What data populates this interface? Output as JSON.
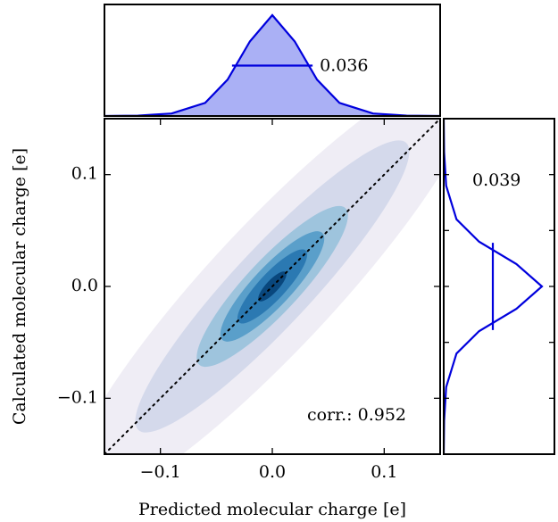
{
  "chart_data": [
    {
      "type": "contour",
      "panel": "main",
      "xlabel": "Predicted molecular charge [e]",
      "ylabel": "Calculated molecular charge [e]",
      "xlim": [
        -0.15,
        0.15
      ],
      "ylim": [
        -0.15,
        0.15
      ],
      "xticks": [
        -0.1,
        0.0,
        0.1
      ],
      "yticks": [
        -0.1,
        0.0,
        0.1
      ],
      "xtick_labels": [
        "−0.1",
        "0.0",
        "0.1"
      ],
      "ytick_labels": [
        "−0.1",
        "0.0",
        "0.1"
      ],
      "diagonal": {
        "style": "dotted",
        "x": [
          -0.15,
          0.15
        ],
        "y": [
          -0.15,
          0.15
        ]
      },
      "density_center": [
        0.0,
        0.0
      ],
      "density_levels": [
        0.05,
        0.2,
        0.4,
        0.6,
        0.8
      ],
      "annotation": "corr.: 0.952",
      "correlation": 0.952,
      "grid": false
    },
    {
      "type": "area",
      "panel": "top-marginal",
      "distribution": "x",
      "x": [
        -0.15,
        -0.12,
        -0.09,
        -0.06,
        -0.04,
        -0.02,
        0.0,
        0.02,
        0.04,
        0.06,
        0.09,
        0.12,
        0.15
      ],
      "y": [
        0.0,
        0.004,
        0.025,
        0.13,
        0.36,
        0.74,
        1.0,
        0.74,
        0.36,
        0.13,
        0.025,
        0.004,
        0.0
      ],
      "fwhm_line": [
        -0.036,
        0.036
      ],
      "annotation": "0.036",
      "color": "#0000dd",
      "fill": "#aab0f5"
    },
    {
      "type": "line",
      "panel": "right-marginal",
      "distribution": "y",
      "y": [
        -0.15,
        -0.12,
        -0.09,
        -0.06,
        -0.04,
        -0.02,
        0.0,
        0.02,
        0.04,
        0.06,
        0.09,
        0.12,
        0.15
      ],
      "x": [
        0.0,
        0.004,
        0.025,
        0.13,
        0.36,
        0.74,
        1.0,
        0.74,
        0.36,
        0.13,
        0.025,
        0.004,
        0.0
      ],
      "fwhm_line": [
        -0.039,
        0.039
      ],
      "annotation": "0.039",
      "color": "#0000dd"
    }
  ],
  "colors": {
    "contour_levels": [
      "#efedf5",
      "#d4d9eb",
      "#9ec4dd",
      "#5a9fca",
      "#2b79b2",
      "#09477d"
    ],
    "diagonal": "#000000",
    "marginal_line": "#0000dd",
    "marginal_fill": "#aab0f5",
    "frame": "#000000"
  }
}
